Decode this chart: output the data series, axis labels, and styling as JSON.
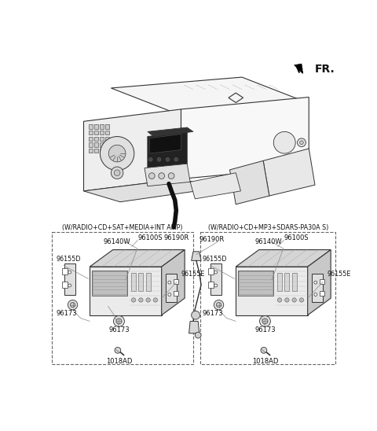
{
  "bg_color": "#ffffff",
  "fig_width": 4.8,
  "fig_height": 5.48,
  "dpi": 100,
  "fr_label": "FR.",
  "left_box_label": "(W/RADIO+CD+SAT+MEDIA+INT AMP)",
  "right_box_label": "(W/RADIO+CD+MP3+SDARS-PA30A S)",
  "left_part_main": "96140W",
  "right_part_main": "96140W",
  "extra_part": "96190R",
  "line_color": "#333333",
  "dash_color": "#666666",
  "fill_light": "#f0f0f0",
  "fill_mid": "#d8d8d8",
  "fill_dark": "#b8b8b8"
}
